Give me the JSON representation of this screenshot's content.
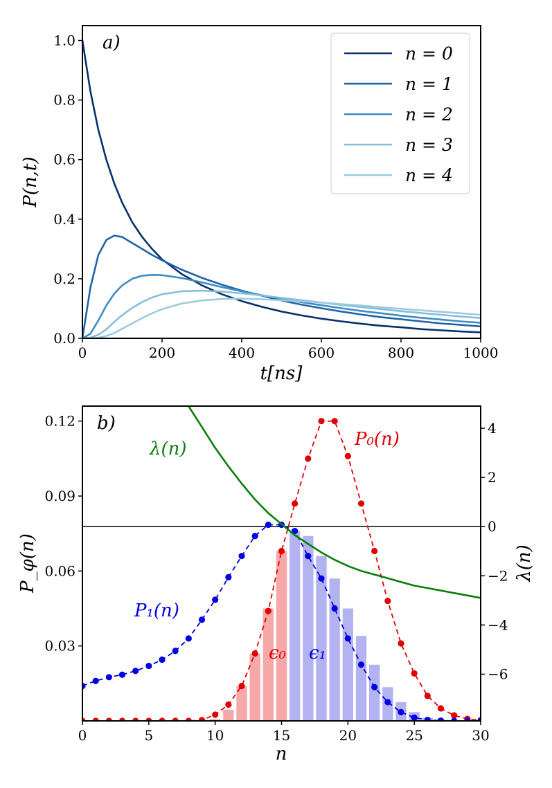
{
  "chart_data": [
    {
      "type": "line",
      "panel_label": "a)",
      "xlabel": "t[ns]",
      "ylabel": "P(n,t)",
      "xlim": [
        0,
        1000
      ],
      "ylim": [
        0,
        1.05
      ],
      "xticks": [
        0,
        200,
        400,
        600,
        800,
        1000
      ],
      "yticks": [
        0.0,
        0.2,
        0.4,
        0.6,
        0.8,
        1.0
      ],
      "legend_position": "top-right",
      "x": [
        0,
        20,
        40,
        60,
        80,
        100,
        125,
        150,
        175,
        200,
        250,
        300,
        350,
        400,
        450,
        500,
        550,
        600,
        650,
        700,
        750,
        800,
        850,
        900,
        950,
        1000
      ],
      "series": [
        {
          "name": "n = 0",
          "color": "#08306b",
          "values": [
            1.0,
            0.83,
            0.7,
            0.6,
            0.52,
            0.455,
            0.39,
            0.34,
            0.3,
            0.265,
            0.215,
            0.178,
            0.148,
            0.125,
            0.106,
            0.09,
            0.077,
            0.066,
            0.057,
            0.049,
            0.042,
            0.037,
            0.031,
            0.027,
            0.023,
            0.02
          ]
        },
        {
          "name": "n = 1",
          "color": "#1f63a8",
          "values": [
            0.0,
            0.17,
            0.28,
            0.33,
            0.345,
            0.34,
            0.32,
            0.3,
            0.28,
            0.262,
            0.23,
            0.203,
            0.18,
            0.16,
            0.143,
            0.127,
            0.113,
            0.101,
            0.09,
            0.08,
            0.071,
            0.064,
            0.057,
            0.05,
            0.045,
            0.04
          ]
        },
        {
          "name": "n = 2",
          "color": "#3d8cc4",
          "values": [
            0.0,
            0.015,
            0.06,
            0.11,
            0.15,
            0.178,
            0.2,
            0.21,
            0.213,
            0.212,
            0.202,
            0.188,
            0.172,
            0.158,
            0.145,
            0.133,
            0.121,
            0.111,
            0.101,
            0.092,
            0.084,
            0.076,
            0.069,
            0.063,
            0.057,
            0.052
          ]
        },
        {
          "name": "n = 3",
          "color": "#87bddc",
          "values": [
            0.0,
            0.002,
            0.012,
            0.03,
            0.055,
            0.078,
            0.102,
            0.122,
            0.137,
            0.148,
            0.158,
            0.16,
            0.157,
            0.151,
            0.144,
            0.136,
            0.128,
            0.12,
            0.112,
            0.105,
            0.098,
            0.091,
            0.085,
            0.079,
            0.073,
            0.068
          ]
        },
        {
          "name": "n = 4",
          "color": "#9ecae1",
          "values": [
            0.0,
            0.0,
            0.002,
            0.008,
            0.018,
            0.032,
            0.05,
            0.068,
            0.084,
            0.098,
            0.117,
            0.127,
            0.132,
            0.133,
            0.131,
            0.128,
            0.124,
            0.12,
            0.115,
            0.11,
            0.104,
            0.099,
            0.094,
            0.089,
            0.084,
            0.079
          ]
        }
      ]
    },
    {
      "type": "line",
      "panel_label": "b)",
      "xlabel": "n",
      "ylabel": "P_φ(n)",
      "ylabel_right": "λ(n)",
      "xlim": [
        0,
        30
      ],
      "ylim": [
        0,
        0.126
      ],
      "ylim_right": [
        -7.9,
        4.9
      ],
      "xticks": [
        0,
        5,
        10,
        15,
        20,
        25,
        30
      ],
      "yticks": [
        0.03,
        0.06,
        0.09,
        0.12
      ],
      "yticks_right": [
        -6,
        -4,
        -2,
        0,
        2,
        4
      ],
      "threshold_line": {
        "y_right": 0
      },
      "bars": {
        "boundary_n": 15.5,
        "left_color": "#f7a8a8",
        "right_color": "#b3b3f2",
        "values": [
          0.0002,
          0.0002,
          0.0002,
          0.0002,
          0.0002,
          0.0002,
          0.0002,
          0.0002,
          0.0002,
          0.0003,
          0.0007,
          0.0045,
          0.014,
          0.027,
          0.045,
          0.068,
          0.076,
          0.074,
          0.066,
          0.057,
          0.045,
          0.034,
          0.0225,
          0.0135,
          0.0075,
          0.0035,
          0.0012,
          0.0004,
          0.0002,
          0.0001,
          0.0
        ]
      },
      "annotations": [
        {
          "text": "λ(n)",
          "color": "#0a7d0a"
        },
        {
          "text": "P₀(n)",
          "color": "#e00000"
        },
        {
          "text": "P₁(n)",
          "color": "#0000e0"
        },
        {
          "text": "ϵ₀",
          "color": "#e00000"
        },
        {
          "text": "ϵ₁",
          "color": "#0000e0"
        }
      ],
      "series": [
        {
          "name": "P₀(n)",
          "color": "#e00000",
          "style": "dashed-dots",
          "x": [
            0,
            1,
            2,
            3,
            4,
            5,
            6,
            7,
            8,
            9,
            10,
            11,
            12,
            13,
            14,
            15,
            16,
            17,
            18,
            19,
            20,
            21,
            22,
            23,
            24,
            25,
            26,
            27,
            28,
            29,
            30
          ],
          "values": [
            0.0,
            0.0,
            0.0,
            0.0,
            0.0,
            0.0,
            0.0,
            0.0,
            0.0,
            0.0003,
            0.0025,
            0.0065,
            0.014,
            0.027,
            0.044,
            0.068,
            0.087,
            0.105,
            0.12,
            0.12,
            0.106,
            0.087,
            0.068,
            0.048,
            0.031,
            0.019,
            0.01,
            0.005,
            0.0022,
            0.0008,
            0.0003
          ]
        },
        {
          "name": "P₁(n)",
          "color": "#0000e0",
          "style": "dashed-dots",
          "x": [
            0,
            1,
            2,
            3,
            4,
            5,
            6,
            7,
            8,
            9,
            10,
            11,
            12,
            13,
            14,
            15,
            16,
            17,
            18,
            19,
            20,
            21,
            22,
            23,
            24,
            25,
            26,
            27,
            28,
            29,
            30
          ],
          "values": [
            0.014,
            0.016,
            0.0175,
            0.0185,
            0.02,
            0.022,
            0.0245,
            0.028,
            0.033,
            0.0405,
            0.0485,
            0.0575,
            0.066,
            0.074,
            0.0785,
            0.0785,
            0.076,
            0.066,
            0.057,
            0.045,
            0.033,
            0.0225,
            0.0135,
            0.0075,
            0.0035,
            0.0013,
            0.0004,
            0.0001,
            0.0,
            0.0,
            0.0
          ]
        },
        {
          "name": "λ(n)",
          "color": "#0a7d0a",
          "style": "solid",
          "axis": "right",
          "x": [
            8,
            9,
            10,
            11,
            12,
            13,
            14,
            15,
            16,
            17,
            18,
            19,
            20,
            21,
            22,
            23,
            24,
            25,
            26,
            27,
            28,
            29,
            30
          ],
          "values": [
            4.9,
            4.05,
            3.2,
            2.45,
            1.75,
            1.1,
            0.55,
            0.1,
            -0.35,
            -0.7,
            -1.05,
            -1.35,
            -1.6,
            -1.8,
            -1.95,
            -2.1,
            -2.25,
            -2.4,
            -2.5,
            -2.6,
            -2.7,
            -2.8,
            -2.9
          ]
        }
      ]
    }
  ]
}
